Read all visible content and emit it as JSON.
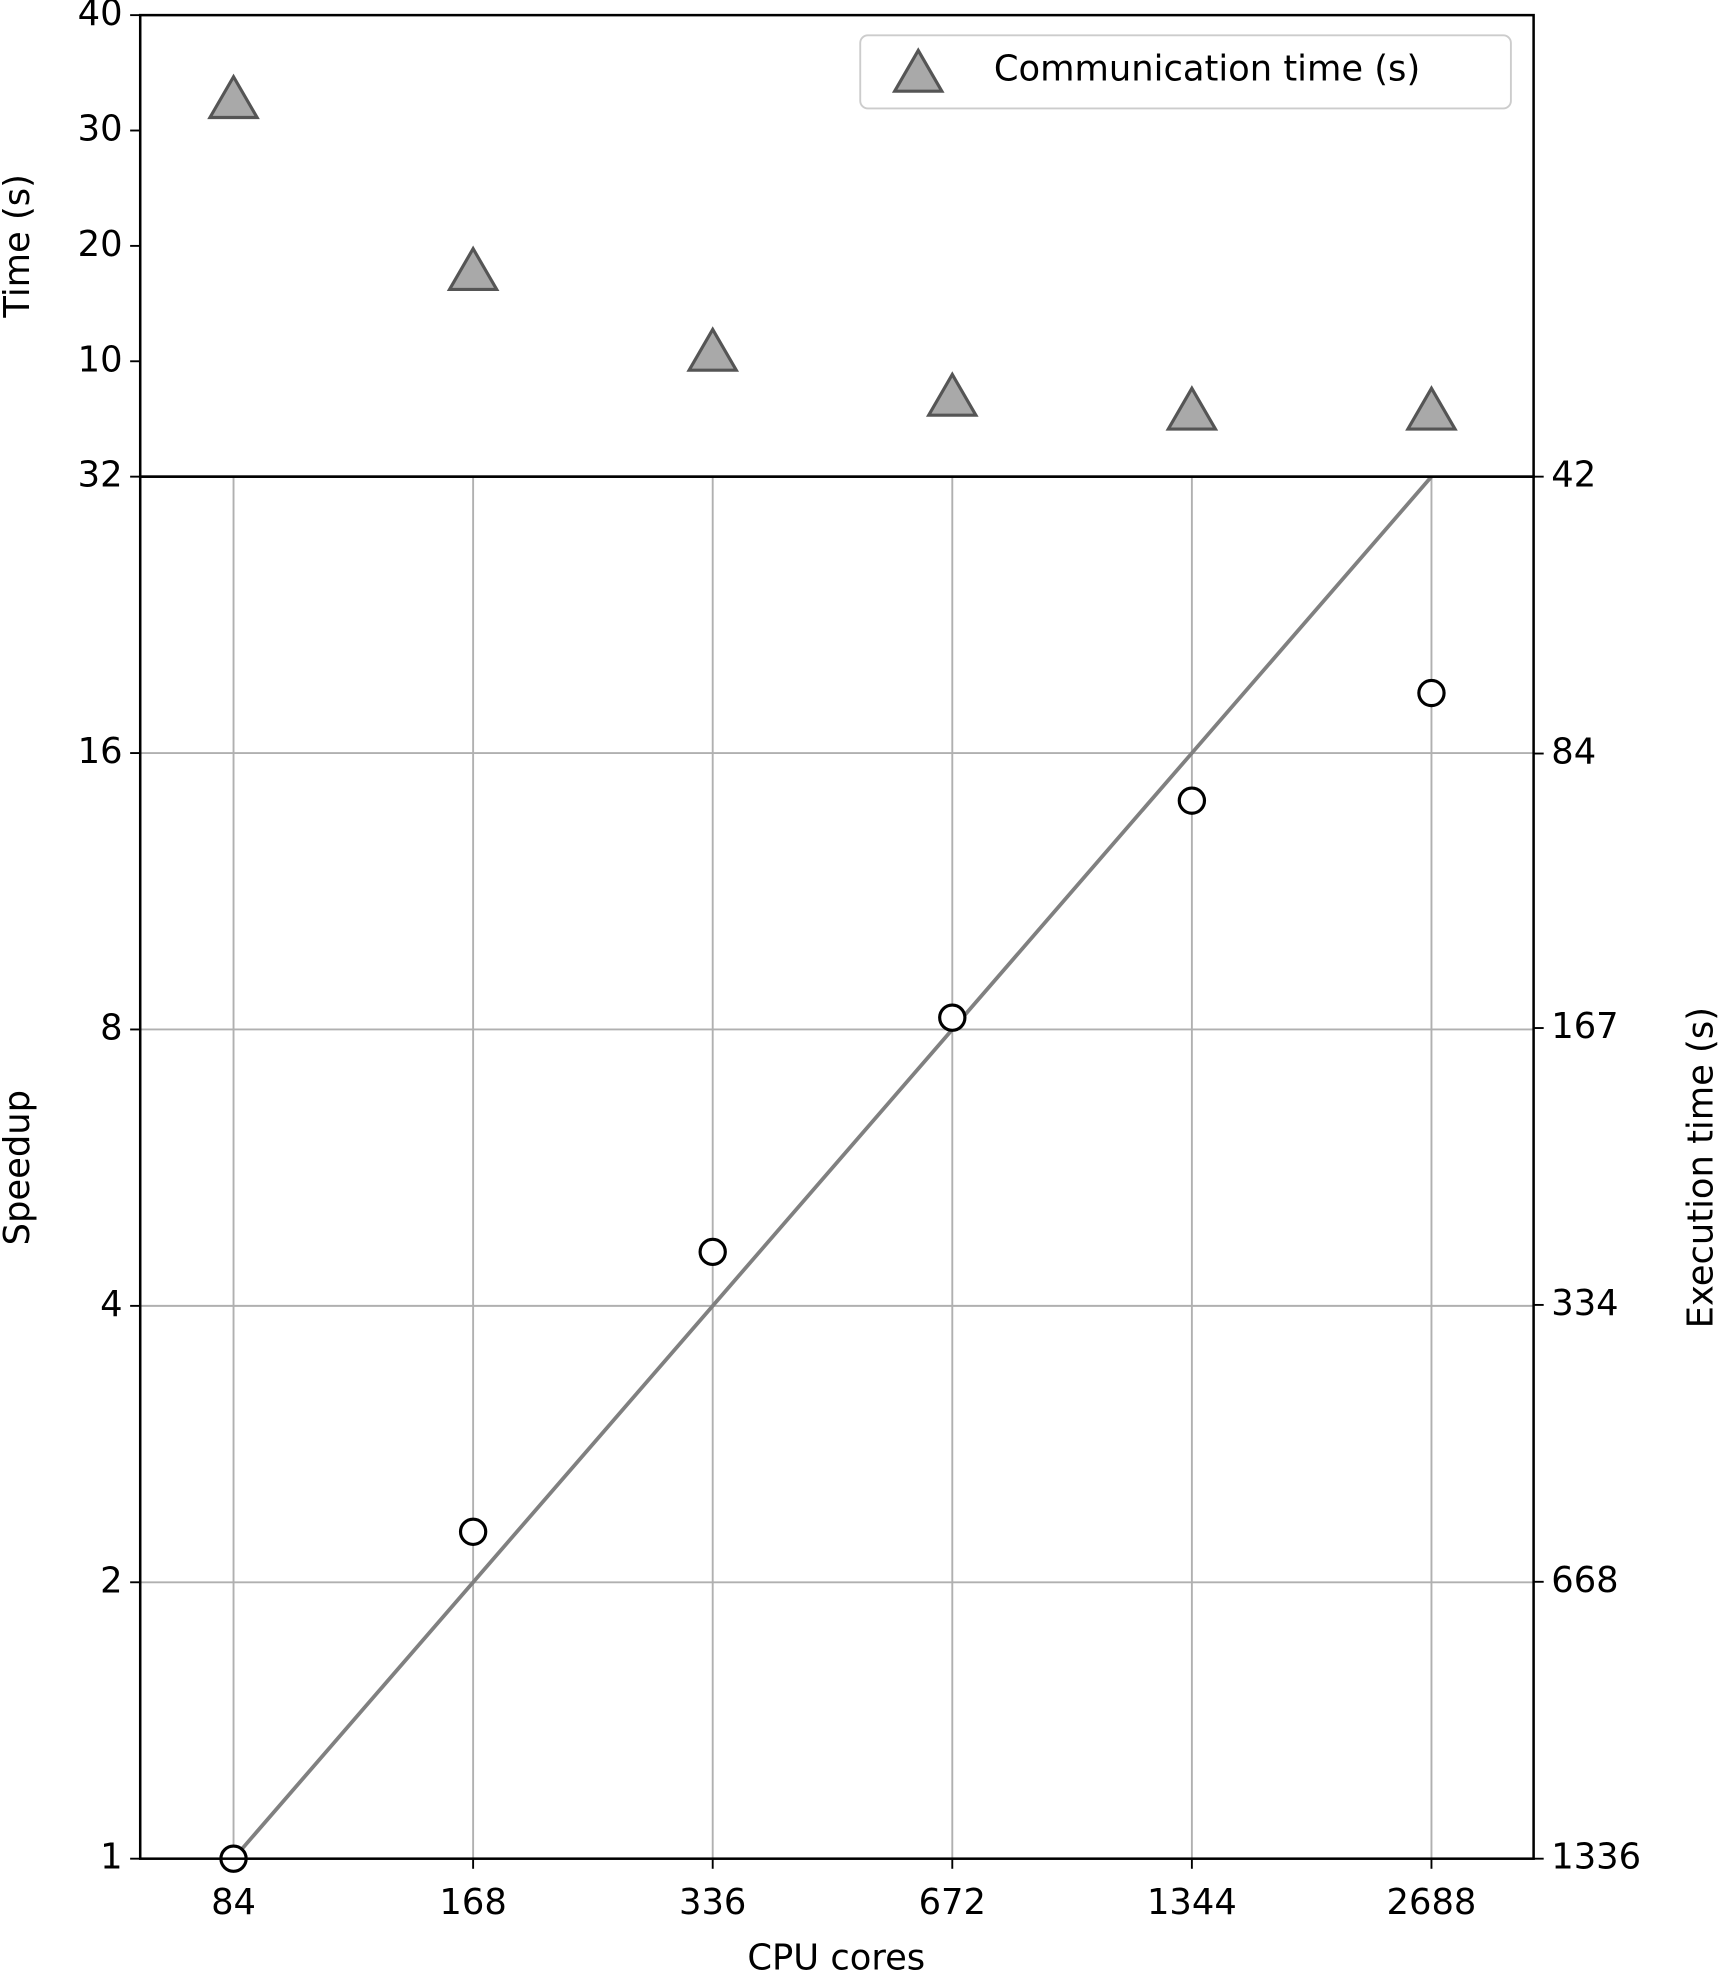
{
  "chart_data": [
    {
      "type": "scatter",
      "y_label": "Time (s)",
      "ylim": [
        0,
        40
      ],
      "yticks": [
        10,
        20,
        30,
        40
      ],
      "grid": false,
      "legend": "upper right",
      "series": [
        {
          "name": "Communication time (s)",
          "color": "#a9a9a9",
          "edgecolor": "#555555",
          "marker": "triangle",
          "values": [
            32.8,
            17.9,
            10.9,
            7.0,
            5.8,
            5.8
          ]
        }
      ]
    },
    {
      "type": "line",
      "x_label": "CPU cores",
      "y_label": "Speedup",
      "y2_label": "Execution time (s)",
      "categories": [
        "84",
        "168",
        "336",
        "672",
        "1344",
        "2688"
      ],
      "yscale": "log",
      "ylim": [
        1,
        32
      ],
      "yticks": [
        1,
        2,
        4,
        8,
        16,
        32
      ],
      "y2scale": "log",
      "y2lim": [
        1336,
        42
      ],
      "y2ticks": [
        42,
        84,
        167,
        334,
        668,
        1336
      ],
      "grid": true,
      "series": [
        {
          "kind": "line",
          "color": "#808080",
          "values": [
            1,
            2,
            4,
            8,
            16,
            32
          ]
        },
        {
          "kind": "scatter",
          "marker": "circle",
          "color": "#000000",
          "values": [
            1,
            2.27,
            4.58,
            8.24,
            14.2,
            18.6
          ]
        }
      ]
    }
  ]
}
